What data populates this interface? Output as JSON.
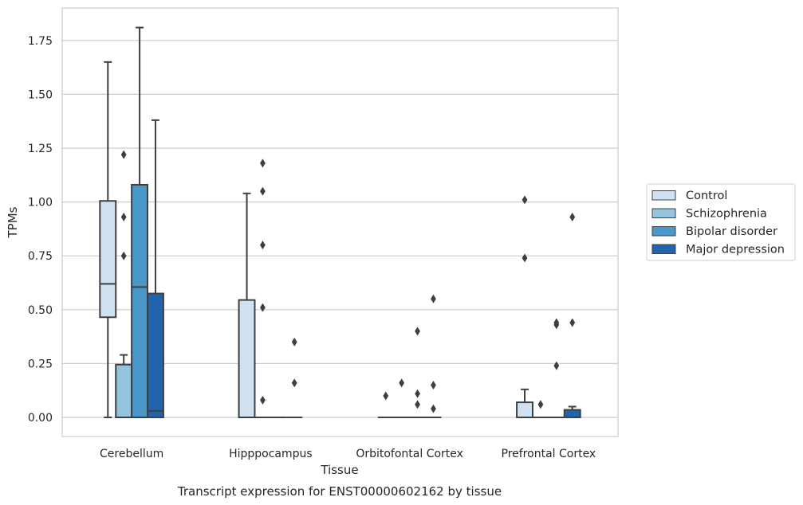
{
  "chart_data": {
    "type": "box",
    "title": "",
    "caption": "Transcript expression for ENST00000602162 by tissue",
    "xlabel": "Tissue",
    "ylabel": "TPMs",
    "ylim": [
      -0.09,
      1.9
    ],
    "yticks": [
      "0.00",
      "0.25",
      "0.50",
      "0.75",
      "1.00",
      "1.25",
      "1.50",
      "1.75"
    ],
    "ytick_values": [
      0,
      0.25,
      0.5,
      0.75,
      1.0,
      1.25,
      1.5,
      1.75
    ],
    "grid": true,
    "legend_position": "right",
    "categories": [
      "Cerebellum",
      "Hipppocampus",
      "Orbitofontal Cortex",
      "Prefrontal Cortex"
    ],
    "series": [
      {
        "name": "Control",
        "color": "#d0e1f2",
        "boxes": [
          {
            "q1": 0.465,
            "median": 0.62,
            "q3": 1.005,
            "whisker_low": 0.0,
            "whisker_high": 1.65,
            "outliers": []
          },
          {
            "q1": 0.0,
            "median": 0.0,
            "q3": 0.545,
            "whisker_low": 0.0,
            "whisker_high": 1.04,
            "outliers": []
          },
          {
            "q1": 0.0,
            "median": 0.0,
            "q3": 0.0,
            "whisker_low": 0.0,
            "whisker_high": 0.0,
            "outliers": [
              0.1
            ]
          },
          {
            "q1": 0.0,
            "median": 0.0,
            "q3": 0.07,
            "whisker_low": 0.0,
            "whisker_high": 0.13,
            "outliers": [
              0.74,
              1.01
            ]
          }
        ]
      },
      {
        "name": "Schizophrenia",
        "color": "#94c4df",
        "boxes": [
          {
            "q1": 0.0,
            "median": 0.0,
            "q3": 0.245,
            "whisker_low": 0.0,
            "whisker_high": 0.29,
            "outliers": [
              0.75,
              0.93,
              1.22
            ]
          },
          {
            "q1": 0.0,
            "median": 0.0,
            "q3": 0.0,
            "whisker_low": 0.0,
            "whisker_high": 0.0,
            "outliers": [
              0.08,
              0.51,
              0.8,
              1.05,
              1.18
            ]
          },
          {
            "q1": 0.0,
            "median": 0.0,
            "q3": 0.0,
            "whisker_low": 0.0,
            "whisker_high": 0.0,
            "outliers": [
              0.16
            ]
          },
          {
            "q1": 0.0,
            "median": 0.0,
            "q3": 0.0,
            "whisker_low": 0.0,
            "whisker_high": 0.0,
            "outliers": [
              0.06
            ]
          }
        ]
      },
      {
        "name": "Bipolar disorder",
        "color": "#4a98c9",
        "boxes": [
          {
            "q1": 0.0,
            "median": 0.605,
            "q3": 1.08,
            "whisker_low": 0.0,
            "whisker_high": 1.81,
            "outliers": []
          },
          {
            "q1": 0.0,
            "median": 0.0,
            "q3": 0.0,
            "whisker_low": 0.0,
            "whisker_high": 0.0,
            "outliers": []
          },
          {
            "q1": 0.0,
            "median": 0.0,
            "q3": 0.0,
            "whisker_low": 0.0,
            "whisker_high": 0.0,
            "outliers": [
              0.06,
              0.11,
              0.4
            ]
          },
          {
            "q1": 0.0,
            "median": 0.0,
            "q3": 0.0,
            "whisker_low": 0.0,
            "whisker_high": 0.0,
            "outliers": [
              0.24,
              0.43,
              0.44
            ]
          }
        ]
      },
      {
        "name": "Major depression",
        "color": "#2164ab",
        "boxes": [
          {
            "q1": 0.0,
            "median": 0.03,
            "q3": 0.575,
            "whisker_low": 0.0,
            "whisker_high": 1.38,
            "outliers": []
          },
          {
            "q1": 0.0,
            "median": 0.0,
            "q3": 0.0,
            "whisker_low": 0.0,
            "whisker_high": 0.0,
            "outliers": [
              0.16,
              0.35
            ]
          },
          {
            "q1": 0.0,
            "median": 0.0,
            "q3": 0.0,
            "whisker_low": 0.0,
            "whisker_high": 0.0,
            "outliers": [
              0.04,
              0.15,
              0.55
            ]
          },
          {
            "q1": 0.0,
            "median": 0.0,
            "q3": 0.035,
            "whisker_low": 0.0,
            "whisker_high": 0.05,
            "outliers": [
              0.44,
              0.93
            ]
          }
        ]
      }
    ]
  }
}
